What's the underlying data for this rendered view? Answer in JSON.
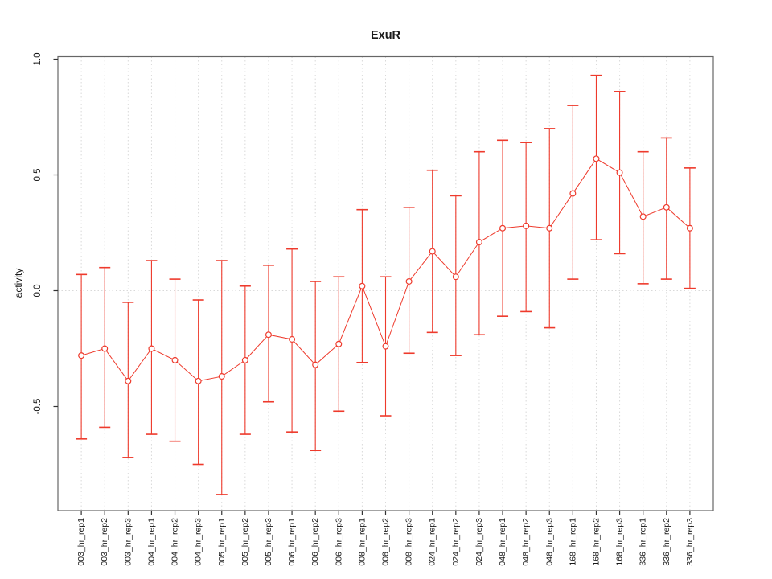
{
  "chart_data": {
    "type": "line",
    "title": "ExuR",
    "ylabel": "activity",
    "xlabel": "",
    "legend_position": "none",
    "grid": "dotted vertical gridline at each category; dotted horizontal line at y=0",
    "categories": [
      "003_hr_rep1",
      "003_hr_rep2",
      "003_hr_rep3",
      "004_hr_rep1",
      "004_hr_rep2",
      "004_hr_rep3",
      "005_hr_rep1",
      "005_hr_rep2",
      "005_hr_rep3",
      "006_hr_rep1",
      "006_hr_rep2",
      "006_hr_rep3",
      "008_hr_rep1",
      "008_hr_rep2",
      "008_hr_rep3",
      "024_hr_rep1",
      "024_hr_rep2",
      "024_hr_rep3",
      "048_hr_rep1",
      "048_hr_rep2",
      "048_hr_rep3",
      "168_hr_rep1",
      "168_hr_rep2",
      "168_hr_rep3",
      "336_hr_rep1",
      "336_hr_rep2",
      "336_hr_rep3"
    ],
    "series": [
      {
        "name": "activity",
        "marker": "open-circle",
        "values": [
          -0.28,
          -0.25,
          -0.39,
          -0.25,
          -0.3,
          -0.39,
          -0.37,
          -0.3,
          -0.19,
          -0.21,
          -0.32,
          -0.23,
          0.02,
          -0.24,
          0.04,
          0.17,
          0.06,
          0.21,
          0.27,
          0.28,
          0.27,
          0.42,
          0.57,
          0.51,
          0.32,
          0.36,
          0.27
        ],
        "error_high": [
          0.07,
          0.1,
          -0.05,
          0.13,
          0.05,
          -0.04,
          0.13,
          0.02,
          0.11,
          0.18,
          0.04,
          0.06,
          0.35,
          0.06,
          0.36,
          0.52,
          0.41,
          0.6,
          0.65,
          0.64,
          0.7,
          0.8,
          0.93,
          0.86,
          0.6,
          0.66,
          0.53
        ],
        "error_low": [
          -0.64,
          -0.59,
          -0.72,
          -0.62,
          -0.65,
          -0.75,
          -0.88,
          -0.62,
          -0.48,
          -0.61,
          -0.69,
          -0.52,
          -0.31,
          -0.54,
          -0.27,
          -0.18,
          -0.28,
          -0.19,
          -0.11,
          -0.09,
          -0.16,
          0.05,
          0.22,
          0.16,
          0.03,
          0.05,
          0.01
        ]
      }
    ],
    "yticks": [
      -0.5,
      0.0,
      0.5,
      1.0
    ],
    "ytick_labels": [
      "-0.5",
      "0.0",
      "0.5",
      "1.0"
    ],
    "ylim": [
      -0.95,
      1.01
    ],
    "zero_line": 0.0,
    "colors": {
      "series": "#ee3a2c",
      "grid": "#d9d9d9",
      "frame": "#666666",
      "tick": "#333333",
      "background": "#ffffff"
    }
  }
}
